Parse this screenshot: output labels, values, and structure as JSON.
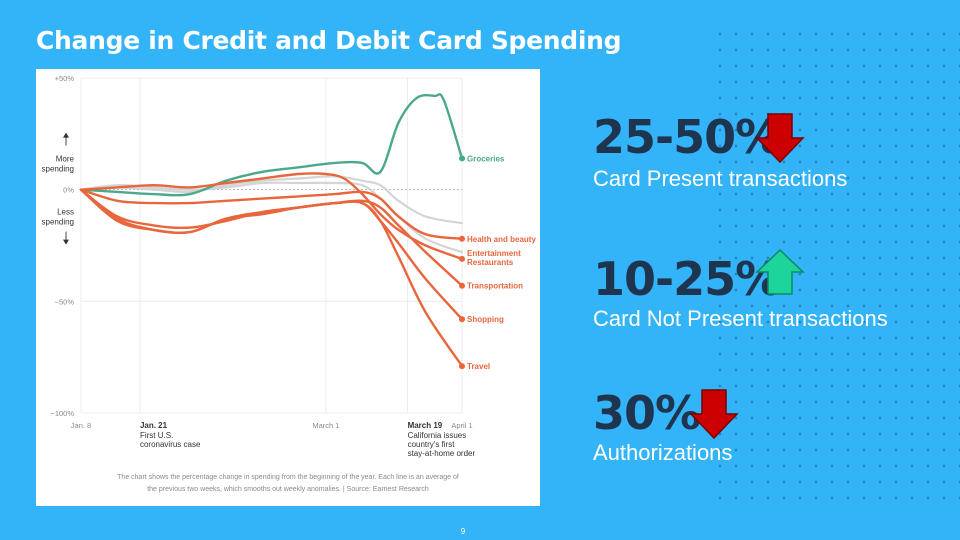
{
  "slide": {
    "title": "Change in Credit and Debit Card Spending",
    "page_number": "9"
  },
  "stats": [
    {
      "value": "25-50%",
      "label": "Card Present transactions",
      "direction": "down",
      "color": "#cc0000"
    },
    {
      "value": "10-25%",
      "label": "Card Not Present transactions",
      "direction": "up",
      "color": "#1dd49a"
    },
    {
      "value": "30%",
      "label": "Authorizations",
      "direction": "down",
      "color": "#cc0000"
    }
  ],
  "chart_data": {
    "type": "line",
    "ylim": [
      -100,
      50
    ],
    "xlim": [
      0,
      84
    ],
    "y_ticks": [
      {
        "value": 50,
        "label": "+50%"
      },
      {
        "value": 0,
        "label": "0%"
      },
      {
        "value": -50,
        "label": "−50%"
      },
      {
        "value": -100,
        "label": "−100%"
      }
    ],
    "x_ticks": [
      {
        "value": 0,
        "label": "Jan. 8"
      },
      {
        "value": 54,
        "label": "March 1"
      },
      {
        "value": 84,
        "label": "April 1"
      }
    ],
    "y_annotations": {
      "more": [
        "More",
        "spending"
      ],
      "less": [
        "Less",
        "spending"
      ]
    },
    "event_annotations": [
      {
        "x": 13,
        "title": "Jan. 21",
        "lines": [
          "First U.S.",
          "coronavirus case"
        ]
      },
      {
        "x": 72,
        "title": "March 19",
        "lines": [
          "California issues",
          "country's first",
          "stay-at-home order"
        ]
      }
    ],
    "caption": [
      "The chart shows the percentage change in spending from the beginning of the year. Each line is an average of",
      "the previous two weeks, which smooths out weekly anomalies. | Source: Earnest Research"
    ],
    "series": [
      {
        "name": "Groceries",
        "color": "#4aa88c",
        "label_lines": [
          "Groceries"
        ],
        "points": [
          [
            0,
            0
          ],
          [
            8,
            -1
          ],
          [
            16,
            -2
          ],
          [
            24,
            -2
          ],
          [
            32,
            4
          ],
          [
            40,
            8
          ],
          [
            48,
            10
          ],
          [
            56,
            12
          ],
          [
            62,
            12
          ],
          [
            66,
            8
          ],
          [
            70,
            30
          ],
          [
            74,
            41
          ],
          [
            78,
            42
          ],
          [
            80,
            40
          ],
          [
            84,
            14
          ]
        ]
      },
      {
        "name": "Health and beauty",
        "color": "#e8663c",
        "label_lines": [
          "Health and beauty"
        ],
        "points": [
          [
            0,
            0
          ],
          [
            8,
            -5
          ],
          [
            16,
            -6
          ],
          [
            24,
            -6
          ],
          [
            32,
            -5
          ],
          [
            40,
            -4
          ],
          [
            48,
            -3
          ],
          [
            56,
            -2
          ],
          [
            62,
            -1
          ],
          [
            66,
            -4
          ],
          [
            70,
            -12
          ],
          [
            76,
            -20
          ],
          [
            84,
            -22
          ]
        ]
      },
      {
        "name": "Entertainment Restaurants",
        "color": "#e8663c",
        "label_lines": [
          "Entertainment",
          "Restaurants"
        ],
        "points": [
          [
            0,
            0
          ],
          [
            8,
            1
          ],
          [
            16,
            2
          ],
          [
            24,
            1
          ],
          [
            32,
            3
          ],
          [
            40,
            5
          ],
          [
            48,
            7
          ],
          [
            54,
            7
          ],
          [
            58,
            5
          ],
          [
            62,
            -2
          ],
          [
            66,
            -11
          ],
          [
            70,
            -18
          ],
          [
            76,
            -25
          ],
          [
            84,
            -31
          ]
        ]
      },
      {
        "name": "Transportation",
        "color": "#e8663c",
        "label_lines": [
          "Transportation"
        ],
        "points": [
          [
            0,
            0
          ],
          [
            8,
            -12
          ],
          [
            16,
            -16
          ],
          [
            24,
            -17
          ],
          [
            32,
            -14
          ],
          [
            40,
            -10
          ],
          [
            48,
            -8
          ],
          [
            56,
            -6
          ],
          [
            62,
            -5
          ],
          [
            66,
            -8
          ],
          [
            70,
            -16
          ],
          [
            76,
            -28
          ],
          [
            84,
            -43
          ]
        ]
      },
      {
        "name": "Shopping",
        "color": "#e8663c",
        "label_lines": [
          "Shopping"
        ],
        "points": [
          [
            0,
            0
          ],
          [
            8,
            -13
          ],
          [
            16,
            -18
          ],
          [
            24,
            -19
          ],
          [
            32,
            -13
          ],
          [
            40,
            -10
          ],
          [
            48,
            -8
          ],
          [
            56,
            -6
          ],
          [
            62,
            -6
          ],
          [
            66,
            -14
          ],
          [
            70,
            -24
          ],
          [
            76,
            -40
          ],
          [
            84,
            -58
          ]
        ]
      },
      {
        "name": "Travel",
        "color": "#e8663c",
        "label_lines": [
          "Travel"
        ],
        "points": [
          [
            0,
            0
          ],
          [
            8,
            -14
          ],
          [
            16,
            -18
          ],
          [
            24,
            -19
          ],
          [
            32,
            -13
          ],
          [
            40,
            -11
          ],
          [
            48,
            -8
          ],
          [
            56,
            -6
          ],
          [
            62,
            -6
          ],
          [
            66,
            -14
          ],
          [
            70,
            -30
          ],
          [
            76,
            -55
          ],
          [
            84,
            -79
          ]
        ]
      },
      {
        "name": "",
        "color": "#cfcfcf",
        "label_lines": [],
        "points": [
          [
            0,
            0
          ],
          [
            8,
            1
          ],
          [
            16,
            0
          ],
          [
            24,
            -1
          ],
          [
            32,
            2
          ],
          [
            40,
            4
          ],
          [
            48,
            5
          ],
          [
            56,
            6
          ],
          [
            62,
            4
          ],
          [
            66,
            2
          ],
          [
            70,
            -5
          ],
          [
            76,
            -12
          ],
          [
            84,
            -15
          ]
        ]
      },
      {
        "name": "",
        "color": "#cfcfcf",
        "label_lines": [],
        "points": [
          [
            0,
            0
          ],
          [
            8,
            2
          ],
          [
            16,
            1
          ],
          [
            24,
            0
          ],
          [
            32,
            1
          ],
          [
            40,
            3
          ],
          [
            48,
            3
          ],
          [
            56,
            3
          ],
          [
            62,
            2
          ],
          [
            66,
            -4
          ],
          [
            70,
            -12
          ],
          [
            76,
            -22
          ],
          [
            84,
            -28
          ]
        ]
      }
    ]
  }
}
